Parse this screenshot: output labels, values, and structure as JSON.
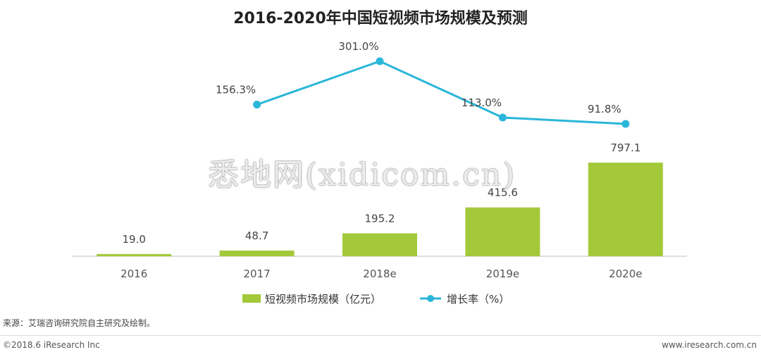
{
  "chart_data": {
    "type": "bar+line",
    "title": "2016-2020年中国短视频市场规模及预测",
    "categories": [
      "2016",
      "2017",
      "2018e",
      "2019e",
      "2020e"
    ],
    "series": [
      {
        "name": "短视频市场规模（亿元）",
        "type": "bar",
        "values": [
          19.0,
          48.7,
          195.2,
          415.6,
          797.1
        ],
        "labels": [
          "19.0",
          "48.7",
          "195.2",
          "415.6",
          "797.1"
        ],
        "color": "#a3c93a"
      },
      {
        "name": "增长率（%）",
        "type": "line",
        "values": [
          null,
          156.3,
          301.0,
          113.0,
          91.8
        ],
        "labels": [
          "",
          "156.3%",
          "301.0%",
          "113.0%",
          "91.8%"
        ],
        "color": "#29b6d9"
      }
    ],
    "legend_position": "bottom-center",
    "grid": false
  },
  "watermark": "悉地网(xidicom.cn)",
  "source_note": "来源：艾瑞咨询研究院自主研究及绘制。",
  "copyright": "©2018.6 iResearch Inc",
  "site_url": "www.iresearch.com.cn"
}
